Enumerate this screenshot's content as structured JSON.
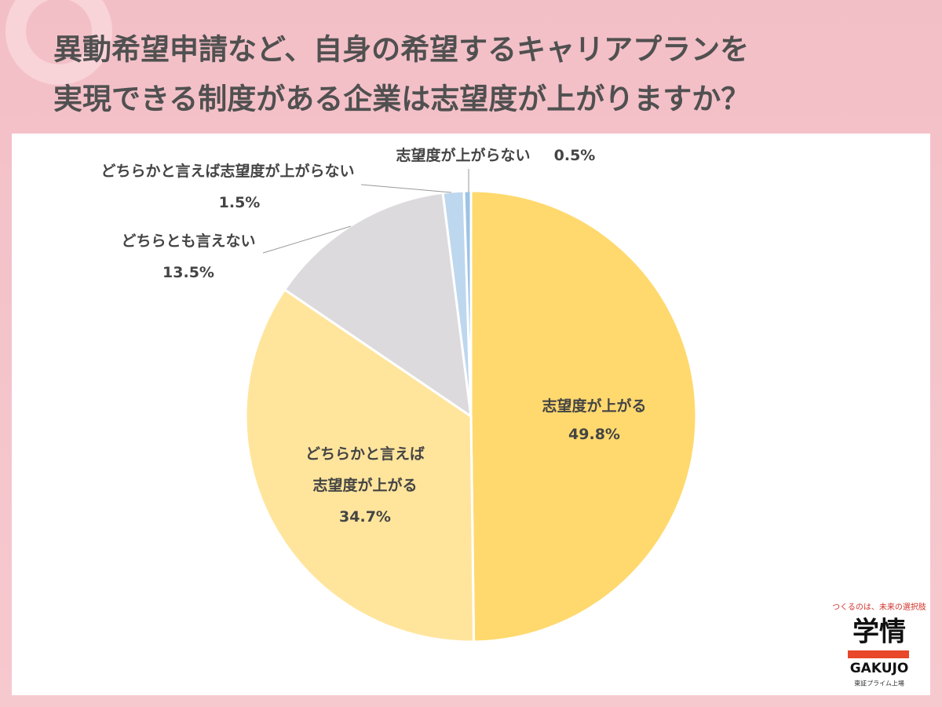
{
  "chart_data": {
    "type": "pie",
    "title": [
      "異動希望申請など、自身の希望するキャリアプランを",
      "実現できる制度がある企業は志望度が上がりますか？"
    ],
    "categories": [
      "志望度が上がる",
      "どちらかと言えば\n志望度が上がる",
      "どちらとも言えない",
      "どちらかと言えば志望度が上がらない",
      "志望度が上がらない"
    ],
    "values": [
      49.8,
      34.7,
      13.5,
      1.5,
      0.5
    ],
    "value_labels": [
      "49.8%",
      "34.7%",
      "13.5%",
      "1.5%",
      "0.5%"
    ],
    "colors": [
      "#ffd96e",
      "#ffe59c",
      "#dcdadd",
      "#bdd7ee",
      "#9dc3e6"
    ]
  },
  "logo": {
    "tagline": "つくるのは、未来の選択肢",
    "name": "学情",
    "roman": "GAKUJO",
    "note": "東証プライム上場"
  }
}
